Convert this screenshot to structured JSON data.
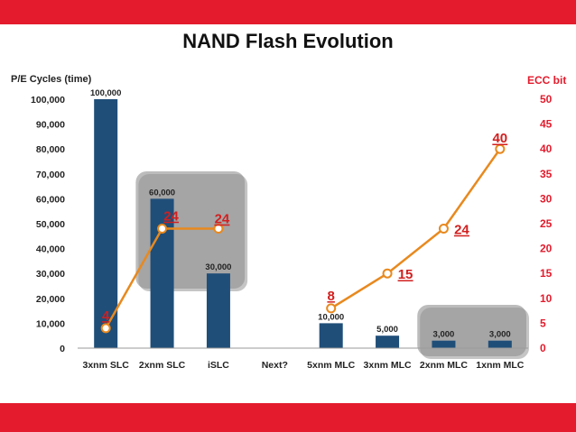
{
  "chart_data": {
    "type": "bar",
    "title": "NAND Flash Evolution",
    "ylabel": "P/E Cycles (time)",
    "y2label": "ECC bit",
    "ylim": [
      0,
      100000
    ],
    "y2lim": [
      0,
      50
    ],
    "y_ticks": [
      "0",
      "10,000",
      "20,000",
      "30,000",
      "40,000",
      "50,000",
      "60,000",
      "70,000",
      "80,000",
      "90,000",
      "100,000"
    ],
    "y2_ticks": [
      "0",
      "5",
      "10",
      "15",
      "20",
      "25",
      "30",
      "35",
      "40",
      "45",
      "50"
    ],
    "categories": [
      "3xnm SLC",
      "2xnm SLC",
      "iSLC",
      "Next?",
      "5xnm MLC",
      "3xnm MLC",
      "2xnm MLC",
      "1xnm MLC"
    ],
    "series": [
      {
        "type": "bar",
        "axis": "left",
        "values": [
          100000,
          60000,
          30000,
          null,
          10000,
          5000,
          3000,
          3000
        ],
        "labels": [
          "100,000",
          "60,000",
          "30,000",
          "",
          "10,000",
          "5,000",
          "3,000",
          "3,000"
        ],
        "color": "#1f4e79"
      },
      {
        "type": "line",
        "axis": "right",
        "values": [
          4,
          24,
          24,
          null,
          8,
          15,
          24,
          40
        ],
        "labels": [
          "4",
          "24",
          "24",
          "",
          "8",
          "15",
          "24",
          "40"
        ],
        "color": "#e8891e"
      }
    ],
    "highlight_groups": [
      {
        "categories": [
          "2xnm SLC",
          "iSLC"
        ]
      },
      {
        "categories": [
          "2xnm MLC",
          "1xnm MLC"
        ]
      }
    ]
  }
}
